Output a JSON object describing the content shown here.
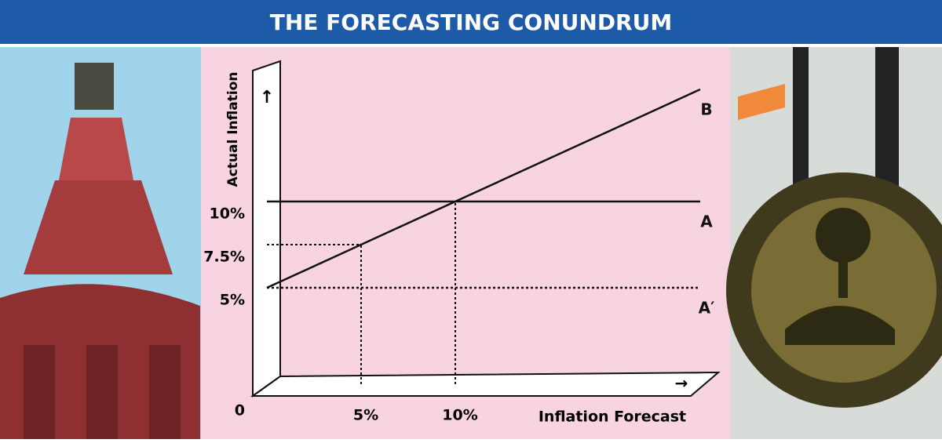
{
  "chart_data": {
    "type": "line",
    "title": "THE FORECASTING CONUNDRUM",
    "x_label": "Inflation Forecast",
    "y_label": "Actual Inflation",
    "xlim": [
      0,
      23
    ],
    "ylim": [
      0,
      18
    ],
    "xticks": [
      {
        "value": 5,
        "label": "5%"
      },
      {
        "value": 10,
        "label": "10%"
      }
    ],
    "yticks": [
      0,
      {
        "value": 5,
        "label": "5%"
      },
      {
        "value": 7.5,
        "label": "7.5%"
      },
      {
        "value": 10,
        "label": "10%"
      }
    ],
    "series": [
      {
        "name": "B",
        "color": "#111111",
        "dashed": false,
        "x": [
          0,
          23
        ],
        "values": [
          5,
          16.5
        ]
      },
      {
        "name": "A",
        "color": "#111111",
        "dashed": false,
        "x": [
          0,
          23
        ],
        "values": [
          10,
          10
        ]
      },
      {
        "name": "A′",
        "color": "#111111",
        "dashed": true,
        "x": [
          0,
          23
        ],
        "values": [
          5,
          5
        ]
      }
    ],
    "guides": [
      {
        "x": 5,
        "y": 7.5
      },
      {
        "x": 10,
        "y": 10
      }
    ]
  }
}
